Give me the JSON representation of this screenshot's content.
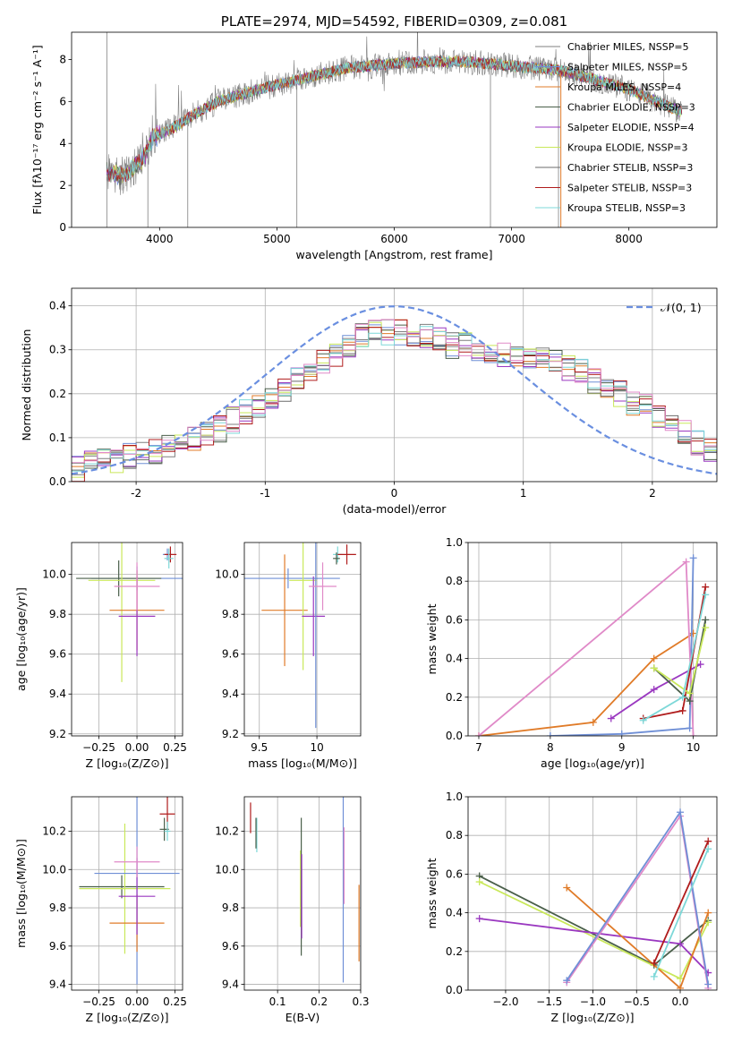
{
  "colors": [
    "#7f7f7f",
    "#6f8fd6",
    "#e07b28",
    "#4a5f4a",
    "#9a38c0",
    "#c9e85a",
    "#6b6b6b",
    "#b01c1c",
    "#7dd8d8",
    "#e08ac8"
  ],
  "chart_data": [
    {
      "type": "line",
      "title": "PLATE=2974, MJD=54592, FIBERID=0309, z=0.081",
      "xlabel": "wavelength [Angstrom, rest frame]",
      "ylabel": "Flux [fλ10⁻¹⁷ erg cm⁻² s⁻¹ A⁻¹]",
      "xlim": [
        3250,
        8750
      ],
      "ylim": [
        0,
        9.3
      ],
      "xticks": [
        4000,
        5000,
        6000,
        7000,
        8000
      ],
      "yticks": [
        0,
        2,
        4,
        6,
        8
      ],
      "legend_position": "right",
      "series": [
        {
          "name": "Chabrier MILES, NSSP=5",
          "color": "#7f7f7f"
        },
        {
          "name": "Salpeter MILES, NSSP=5",
          "color": "#6f8fd6"
        },
        {
          "name": "Kroupa MILES, NSSP=4",
          "color": "#e07b28"
        },
        {
          "name": "Chabrier ELODIE, NSSP=3",
          "color": "#4a5f4a"
        },
        {
          "name": "Salpeter ELODIE, NSSP=4",
          "color": "#9a38c0"
        },
        {
          "name": "Kroupa ELODIE, NSSP=3",
          "color": "#c9e85a"
        },
        {
          "name": "Chabrier STELIB, NSSP=3",
          "color": "#6b6b6b"
        },
        {
          "name": "Salpeter STELIB, NSSP=3",
          "color": "#b01c1c"
        },
        {
          "name": "Kroupa STELIB, NSSP=3",
          "color": "#7dd8d8"
        }
      ],
      "continuum": {
        "x": [
          3550,
          3700,
          3850,
          3950,
          4100,
          4300,
          4500,
          4800,
          5000,
          5300,
          5600,
          6000,
          6300,
          6600,
          6800,
          7000,
          7200,
          7400,
          7600,
          7800,
          8000,
          8200,
          8400,
          8500
        ],
        "y": [
          2.6,
          2.5,
          3.2,
          4.3,
          4.7,
          5.4,
          6.0,
          6.5,
          6.8,
          7.2,
          7.6,
          7.8,
          7.9,
          7.9,
          7.8,
          7.7,
          7.6,
          7.5,
          7.2,
          6.9,
          6.6,
          6.1,
          5.6,
          5.4
        ]
      }
    },
    {
      "type": "histogram",
      "xlabel": "(data-model)/error",
      "ylabel": "Normed distribution",
      "xlim": [
        -2.5,
        2.5
      ],
      "ylim": [
        0,
        0.44
      ],
      "xticks": [
        -2,
        -1,
        0,
        1,
        2
      ],
      "yticks": [
        0.0,
        0.1,
        0.2,
        0.3,
        0.4
      ],
      "legend": "𝒩(0, 1)",
      "legend_position": "top-right",
      "bin_edges_start": -2.5,
      "bin_width": 0.1,
      "base_values": [
        0.03,
        0.04,
        0.05,
        0.05,
        0.06,
        0.07,
        0.07,
        0.08,
        0.09,
        0.1,
        0.11,
        0.12,
        0.14,
        0.16,
        0.17,
        0.19,
        0.21,
        0.23,
        0.25,
        0.27,
        0.29,
        0.31,
        0.33,
        0.35,
        0.34,
        0.34,
        0.33,
        0.33,
        0.32,
        0.31,
        0.31,
        0.3,
        0.3,
        0.29,
        0.29,
        0.28,
        0.28,
        0.27,
        0.26,
        0.25,
        0.23,
        0.22,
        0.2,
        0.18,
        0.17,
        0.15,
        0.13,
        0.11,
        0.09,
        0.07,
        0.06,
        0.06,
        0.05,
        0.05,
        0.05
      ]
    },
    {
      "type": "errorbar",
      "xlabel": "Z [log₁₀(Z/Z⊙)]",
      "ylabel": "age  [log₁₀(age/yr)]",
      "xlim": [
        -0.43,
        0.3
      ],
      "ylim": [
        9.19,
        10.16
      ],
      "xticks": [
        -0.25,
        0.0,
        0.25
      ],
      "xticklabels": [
        "−0.25",
        "0.00",
        "0.25"
      ],
      "yticks": [
        9.2,
        9.4,
        9.6,
        9.8,
        10.0
      ],
      "points": [
        {
          "x": 0.0,
          "xerr": 0.3,
          "y": 9.98,
          "yerr": 0.06,
          "ci": 1
        },
        {
          "x": 0.2,
          "xerr": 0.03,
          "y": 10.1,
          "yerr": 0.03,
          "ci": 1
        },
        {
          "x": -0.12,
          "xerr": 0.28,
          "y": 9.98,
          "yerr": 0.09,
          "ci": 3
        },
        {
          "x": -0.1,
          "xerr": 0.22,
          "y": 9.97,
          "yerr": 0.51,
          "ci": 5
        },
        {
          "x": 0.0,
          "xerr": 0.18,
          "y": 9.82,
          "yerr": 0.2,
          "ci": 2
        },
        {
          "x": 0.0,
          "xerr": 0.12,
          "y": 9.79,
          "yerr": 0.2,
          "ci": 4
        },
        {
          "x": 0.0,
          "xerr": 0.15,
          "y": 9.94,
          "yerr": 0.12,
          "ci": 9
        },
        {
          "x": 0.22,
          "xerr": 0.04,
          "y": 10.1,
          "yerr": 0.04,
          "ci": 7
        },
        {
          "x": 0.21,
          "xerr": 0.03,
          "y": 10.08,
          "yerr": 0.05,
          "ci": 8
        }
      ]
    },
    {
      "type": "errorbar",
      "xlabel": "mass [log₁₀(M/M⊙)]",
      "ylabel": "",
      "xlim": [
        9.37,
        10.38
      ],
      "ylim": [
        9.19,
        10.16
      ],
      "xticks": [
        9.5,
        10.0
      ],
      "yticks": [
        9.2,
        9.4,
        9.6,
        9.8,
        10.0
      ],
      "points": [
        {
          "x": 9.75,
          "xerr": 0.45,
          "y": 9.98,
          "yerr": 0.05,
          "ci": 1
        },
        {
          "x": 9.72,
          "xerr": 0.2,
          "y": 9.82,
          "yerr": 0.28,
          "ci": 2
        },
        {
          "x": 9.88,
          "xerr": 0.12,
          "y": 9.97,
          "yerr": 0.45,
          "ci": 5
        },
        {
          "x": 9.97,
          "xerr": 0.1,
          "y": 9.79,
          "yerr": 0.2,
          "ci": 4
        },
        {
          "x": 9.99,
          "xerr": 0.02,
          "y": 9.98,
          "yerr": 0.75,
          "ci": 1
        },
        {
          "x": 10.05,
          "xerr": 0.12,
          "y": 9.94,
          "yerr": 0.12,
          "ci": 9
        },
        {
          "x": 10.18,
          "xerr": 0.04,
          "y": 10.1,
          "yerr": 0.04,
          "ci": 8
        },
        {
          "x": 10.26,
          "xerr": 0.08,
          "y": 10.1,
          "yerr": 0.05,
          "ci": 7
        },
        {
          "x": 10.17,
          "xerr": 0.03,
          "y": 10.08,
          "yerr": 0.03,
          "ci": 3
        }
      ]
    },
    {
      "type": "line",
      "xlabel": "age  [log₁₀(age/yr)]",
      "ylabel": "mass weight",
      "xlim": [
        6.85,
        10.33
      ],
      "ylim": [
        0,
        1
      ],
      "xticks": [
        7,
        8,
        9,
        10
      ],
      "yticks": [
        0.0,
        0.2,
        0.4,
        0.6,
        0.8,
        1.0
      ],
      "series": [
        {
          "ci": 2,
          "x": [
            7.0,
            8.6,
            9.45,
            10.0
          ],
          "y": [
            0.0,
            0.07,
            0.4,
            0.53
          ]
        },
        {
          "ci": 1,
          "x": [
            8.0,
            9.0,
            9.95,
            10.0
          ],
          "y": [
            0.0,
            0.01,
            0.04,
            0.92
          ]
        },
        {
          "ci": 9,
          "x": [
            7.0,
            9.9,
            10.0
          ],
          "y": [
            0.0,
            0.9,
            0.0
          ]
        },
        {
          "ci": 4,
          "x": [
            8.85,
            9.45,
            10.1
          ],
          "y": [
            0.09,
            0.24,
            0.37
          ]
        },
        {
          "ci": 7,
          "x": [
            9.3,
            9.85,
            10.17
          ],
          "y": [
            0.09,
            0.13,
            0.77
          ]
        },
        {
          "ci": 3,
          "x": [
            9.45,
            9.95,
            10.17
          ],
          "y": [
            0.35,
            0.18,
            0.6
          ]
        },
        {
          "ci": 5,
          "x": [
            9.45,
            9.95,
            10.17
          ],
          "y": [
            0.35,
            0.22,
            0.56
          ]
        },
        {
          "ci": 8,
          "x": [
            9.3,
            9.85,
            10.17
          ],
          "y": [
            0.08,
            0.2,
            0.73
          ]
        }
      ]
    },
    {
      "type": "errorbar",
      "xlabel": "Z [log₁₀(Z/Z⊙)]",
      "ylabel": "mass [log₁₀(M/M⊙)]",
      "xlim": [
        -0.43,
        0.3
      ],
      "ylim": [
        9.37,
        10.38
      ],
      "xticks": [
        -0.25,
        0.0,
        0.25
      ],
      "xticklabels": [
        "−0.25",
        "0.00",
        "0.25"
      ],
      "yticks": [
        9.4,
        9.6,
        9.8,
        10.0,
        10.2
      ],
      "points": [
        {
          "x": -0.1,
          "xerr": 0.28,
          "y": 9.91,
          "yerr": 0.06,
          "ci": 3
        },
        {
          "x": -0.08,
          "xerr": 0.3,
          "y": 9.9,
          "yerr": 0.34,
          "ci": 5
        },
        {
          "x": 0.0,
          "xerr": 0.28,
          "y": 9.98,
          "yerr": 0.58,
          "ci": 1
        },
        {
          "x": 0.0,
          "xerr": 0.18,
          "y": 9.72,
          "yerr": 0.15,
          "ci": 2
        },
        {
          "x": 0.0,
          "xerr": 0.12,
          "y": 9.86,
          "yerr": 0.2,
          "ci": 4
        },
        {
          "x": 0.0,
          "xerr": 0.15,
          "y": 10.04,
          "yerr": 0.08,
          "ci": 9
        },
        {
          "x": 0.2,
          "xerr": 0.05,
          "y": 10.29,
          "yerr": 0.09,
          "ci": 7
        },
        {
          "x": 0.18,
          "xerr": 0.03,
          "y": 10.21,
          "yerr": 0.06,
          "ci": 3
        },
        {
          "x": 0.2,
          "xerr": 0.02,
          "y": 10.2,
          "yerr": 0.05,
          "ci": 8
        }
      ]
    },
    {
      "type": "errorbar",
      "xlabel": "E(B-V)",
      "ylabel": "",
      "xlim": [
        0.02,
        0.3
      ],
      "ylim": [
        9.37,
        10.38
      ],
      "xticks": [
        0.1,
        0.2,
        0.3
      ],
      "yticks": [
        9.4,
        9.6,
        9.8,
        10.0,
        10.2
      ],
      "points": [
        {
          "x": 0.035,
          "xerr": 0.0,
          "y": 10.27,
          "yerr": 0.08,
          "ci": 7
        },
        {
          "x": 0.05,
          "xerr": 0.0,
          "y": 10.18,
          "yerr": 0.09,
          "ci": 8
        },
        {
          "x": 0.048,
          "xerr": 0.0,
          "y": 10.19,
          "yerr": 0.08,
          "ci": 3
        },
        {
          "x": 0.155,
          "xerr": 0.0,
          "y": 9.9,
          "yerr": 0.2,
          "ci": 5
        },
        {
          "x": 0.157,
          "xerr": 0.0,
          "y": 9.91,
          "yerr": 0.36,
          "ci": 3
        },
        {
          "x": 0.158,
          "xerr": 0.0,
          "y": 9.86,
          "yerr": 0.22,
          "ci": 4
        },
        {
          "x": 0.258,
          "xerr": 0.0,
          "y": 9.98,
          "yerr": 0.57,
          "ci": 1
        },
        {
          "x": 0.26,
          "xerr": 0.0,
          "y": 10.02,
          "yerr": 0.2,
          "ci": 9
        },
        {
          "x": 0.296,
          "xerr": 0.0,
          "y": 9.72,
          "yerr": 0.2,
          "ci": 2
        }
      ]
    },
    {
      "type": "line",
      "xlabel": "Z [log₁₀(Z/Z⊙)]",
      "ylabel": "mass weight",
      "xlim": [
        -2.43,
        0.42
      ],
      "ylim": [
        0,
        1
      ],
      "xticks": [
        -2.0,
        -1.5,
        -1.0,
        -0.5,
        0.0
      ],
      "xticklabels": [
        "−2.0",
        "−1.5",
        "−1.0",
        "−0.5",
        "0.0"
      ],
      "yticks": [
        0.0,
        0.2,
        0.4,
        0.6,
        0.8,
        1.0
      ],
      "series": [
        {
          "ci": 3,
          "x": [
            -2.3,
            -0.3,
            0.32
          ],
          "y": [
            0.59,
            0.13,
            0.36
          ]
        },
        {
          "ci": 5,
          "x": [
            -2.3,
            0.0,
            0.32
          ],
          "y": [
            0.56,
            0.06,
            0.35
          ]
        },
        {
          "ci": 4,
          "x": [
            -2.3,
            0.0,
            0.32
          ],
          "y": [
            0.37,
            0.24,
            0.09
          ]
        },
        {
          "ci": 2,
          "x": [
            -1.3,
            0.0,
            0.32
          ],
          "y": [
            0.53,
            0.01,
            0.4
          ]
        },
        {
          "ci": 9,
          "x": [
            -1.3,
            0.0,
            0.32
          ],
          "y": [
            0.04,
            0.9,
            0.01
          ]
        },
        {
          "ci": 1,
          "x": [
            -1.3,
            0.0,
            0.32
          ],
          "y": [
            0.05,
            0.92,
            0.03
          ]
        },
        {
          "ci": 7,
          "x": [
            -0.3,
            0.32
          ],
          "y": [
            0.14,
            0.77
          ]
        },
        {
          "ci": 8,
          "x": [
            -0.3,
            0.32
          ],
          "y": [
            0.07,
            0.73
          ]
        }
      ]
    }
  ]
}
